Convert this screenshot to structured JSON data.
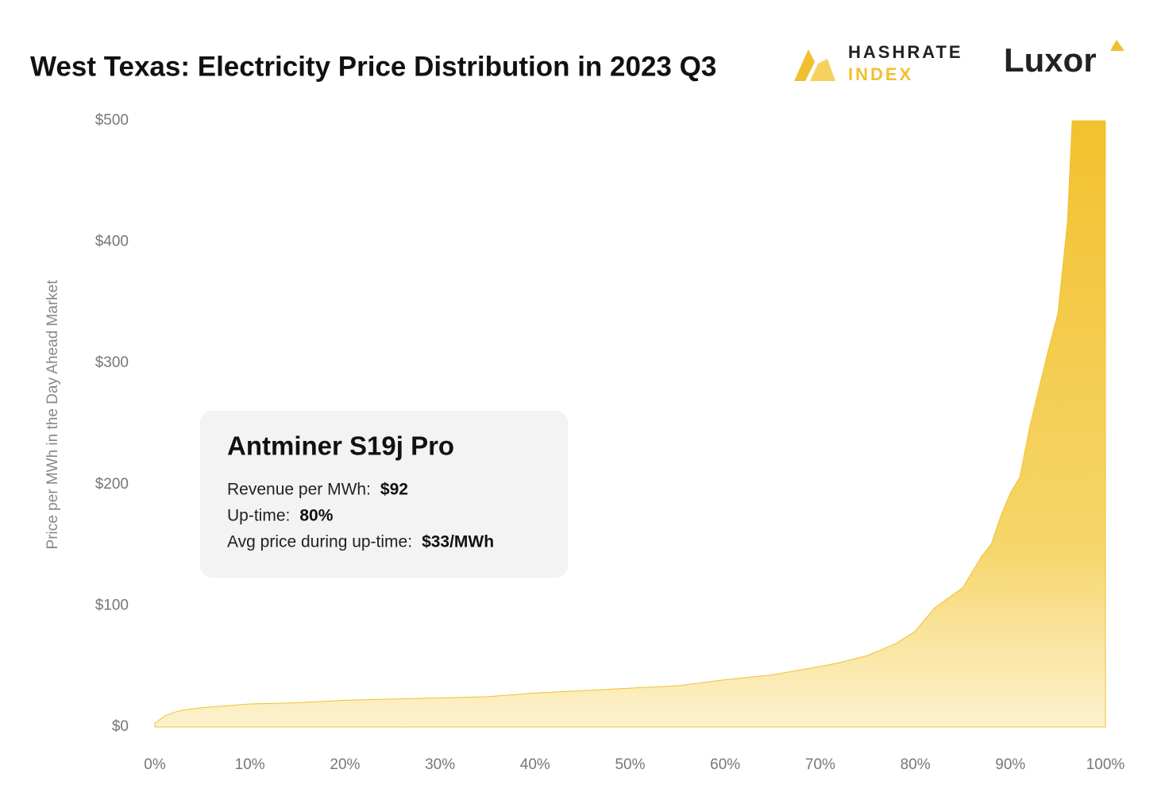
{
  "chart_data": {
    "type": "area",
    "title": "West Texas: Electricity Price Distribution in 2023 Q3",
    "y_label": "Price per MWh in the Day Ahead Market",
    "x": [
      0,
      1,
      2,
      3,
      5,
      10,
      15,
      20,
      25,
      30,
      35,
      40,
      45,
      50,
      55,
      60,
      65,
      70,
      72,
      75,
      78,
      80,
      82,
      85,
      87,
      88,
      89,
      90,
      91,
      92,
      93,
      94,
      95,
      96,
      96.5,
      100
    ],
    "series": [
      {
        "color": "#f2c12e",
        "values": [
          3,
          9,
          12,
          14,
          16,
          19,
          20,
          22,
          23,
          24,
          25,
          28,
          30,
          32,
          34,
          39,
          43,
          50,
          53,
          59,
          69,
          79,
          98,
          115,
          141,
          151,
          174,
          193,
          206,
          246,
          279,
          311,
          341,
          416,
          500,
          500
        ]
      }
    ],
    "xlim": [
      0,
      100
    ],
    "ylim": [
      0,
      500
    ],
    "xticks": [
      {
        "value": 0,
        "label": "0%"
      },
      {
        "value": 10,
        "label": "10%"
      },
      {
        "value": 20,
        "label": "20%"
      },
      {
        "value": 30,
        "label": "30%"
      },
      {
        "value": 40,
        "label": "40%"
      },
      {
        "value": 50,
        "label": "50%"
      },
      {
        "value": 60,
        "label": "60%"
      },
      {
        "value": 70,
        "label": "70%"
      },
      {
        "value": 80,
        "label": "80%"
      },
      {
        "value": 90,
        "label": "90%"
      },
      {
        "value": 100,
        "label": "100%"
      }
    ],
    "yticks": [
      {
        "value": 0,
        "label": "$0"
      },
      {
        "value": 100,
        "label": "$100"
      },
      {
        "value": 200,
        "label": "$200"
      },
      {
        "value": 300,
        "label": "$300"
      },
      {
        "value": 400,
        "label": "$400"
      },
      {
        "value": 500,
        "label": "$500"
      }
    ],
    "grid": false,
    "annotation": {
      "title": "Antminer S19j Pro",
      "lines": [
        {
          "label": "Revenue per MWh:",
          "value": "$92"
        },
        {
          "label": "Up-time:",
          "value": "80%"
        },
        {
          "label": "Avg price during up-time:",
          "value": "$33/MWh"
        }
      ]
    },
    "logos": {
      "hashrate_top": "HASHRATE",
      "hashrate_bottom": "INDEX",
      "luxor": "Luxor"
    }
  }
}
